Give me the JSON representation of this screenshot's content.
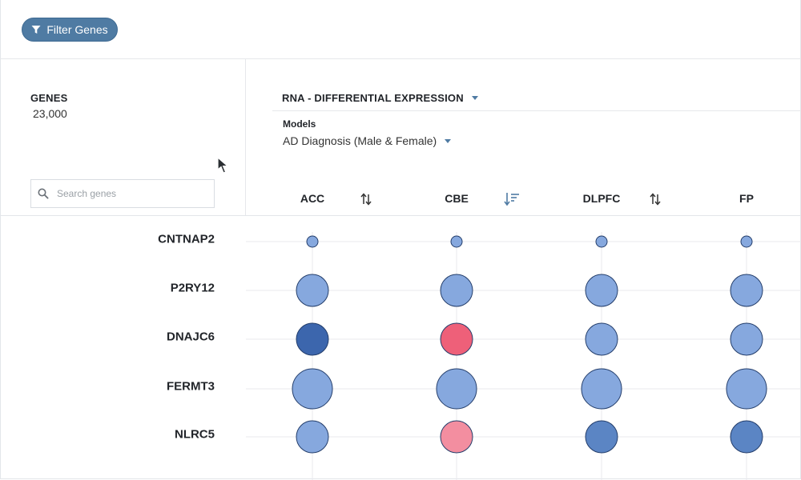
{
  "toolbar": {
    "filter_label": "Filter Genes",
    "filter_icon": "funnel-icon"
  },
  "genes_panel": {
    "heading": "GENES",
    "count": "23,000",
    "search_placeholder": "Search genes",
    "search_icon": "magnifier-icon"
  },
  "metric": {
    "selected": "RNA - DIFFERENTIAL EXPRESSION"
  },
  "models": {
    "label": "Models",
    "selected": "AD Diagnosis (Male & Female)"
  },
  "colors": {
    "accent": "#4f7ba3",
    "up_strong": "#3c66ad",
    "up_medium": "#5b85c4",
    "up_light": "#86a8de",
    "down_strong": "#ee6079",
    "down_light": "#f38ea0",
    "bubble_stroke": "#243e6b"
  },
  "tissues": [
    {
      "name": "ACC",
      "sort_state": "unsorted"
    },
    {
      "name": "CBE",
      "sort_state": "sorted-descending"
    },
    {
      "name": "DLPFC",
      "sort_state": "unsorted"
    },
    {
      "name": "FP",
      "sort_state": "unsorted"
    }
  ],
  "genes": [
    "CNTNAP2",
    "P2RY12",
    "DNAJC6",
    "FERMT3",
    "NLRC5"
  ],
  "chart_data": {
    "type": "bubble-matrix",
    "columns": [
      "ACC",
      "CBE",
      "DLPFC",
      "FP"
    ],
    "rows": [
      "CNTNAP2",
      "P2RY12",
      "DNAJC6",
      "FERMT3",
      "NLRC5"
    ],
    "cells": [
      [
        {
          "size": 1,
          "color": "up_light"
        },
        {
          "size": 1,
          "color": "up_light"
        },
        {
          "size": 1,
          "color": "up_light"
        },
        {
          "size": 1,
          "color": "up_light"
        }
      ],
      [
        {
          "size": 3,
          "color": "up_light"
        },
        {
          "size": 3,
          "color": "up_light"
        },
        {
          "size": 3,
          "color": "up_light"
        },
        {
          "size": 3,
          "color": "up_light"
        }
      ],
      [
        {
          "size": 3,
          "color": "up_strong"
        },
        {
          "size": 3,
          "color": "down_strong"
        },
        {
          "size": 3,
          "color": "up_light"
        },
        {
          "size": 3,
          "color": "up_light"
        }
      ],
      [
        {
          "size": 4,
          "color": "up_light"
        },
        {
          "size": 4,
          "color": "up_light"
        },
        {
          "size": 4,
          "color": "up_light"
        },
        {
          "size": 4,
          "color": "up_light"
        }
      ],
      [
        {
          "size": 3,
          "color": "up_light"
        },
        {
          "size": 3,
          "color": "down_light"
        },
        {
          "size": 3,
          "color": "up_medium"
        },
        {
          "size": 3,
          "color": "up_medium"
        }
      ]
    ]
  }
}
